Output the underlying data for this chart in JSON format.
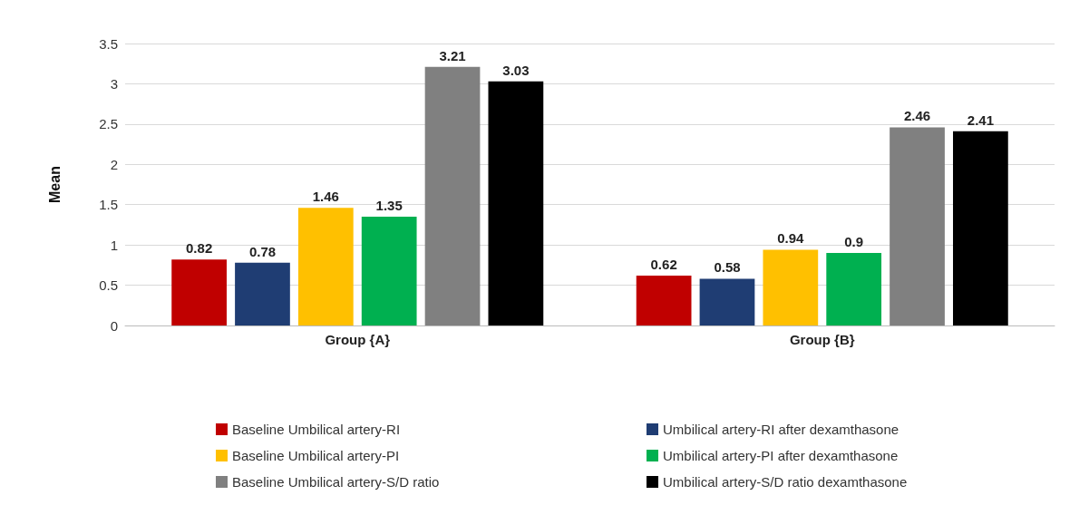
{
  "chart_data": {
    "type": "bar",
    "ylabel": "Mean",
    "categories": [
      "Group {A}",
      "Group {B}"
    ],
    "series": [
      {
        "name": "Baseline Umbilical artery-RI",
        "color": "#c00000",
        "values": [
          0.82,
          0.62
        ]
      },
      {
        "name": "Umbilical artery-RI after dexamthasone",
        "color": "#1f3d73",
        "values": [
          0.78,
          0.58
        ]
      },
      {
        "name": "Baseline Umbilical artery-PI",
        "color": "#ffc000",
        "values": [
          1.46,
          0.94
        ]
      },
      {
        "name": "Umbilical artery-PI after dexamthasone",
        "color": "#00b050",
        "values": [
          1.35,
          0.9
        ]
      },
      {
        "name": "Baseline Umbilical artery-S/D ratio",
        "color": "#808080",
        "values": [
          3.21,
          2.46
        ]
      },
      {
        "name": "Umbilical artery-S/D ratio dexamthasone",
        "color": "#000000",
        "values": [
          3.03,
          2.41
        ]
      }
    ],
    "ylim": [
      0,
      3.5
    ],
    "yticks": [
      0,
      0.5,
      1,
      1.5,
      2,
      2.5,
      3,
      3.5
    ],
    "grid": "y",
    "legend": "bottom",
    "data_labels": true
  }
}
